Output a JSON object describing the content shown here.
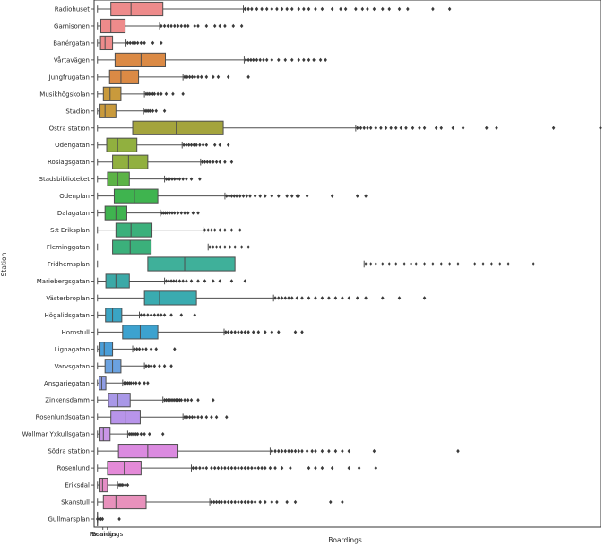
{
  "chart_data": {
    "type": "boxplot",
    "orientation": "horizontal",
    "xlabel": "Boardings",
    "ylabel": "Station",
    "xlim": [
      -20,
      3000
    ],
    "x_tick_labels": [
      "Passings",
      "Boardings"
    ],
    "grid": false,
    "stations": [
      {
        "name": "Radiohuset",
        "color": "#ee8b8b",
        "whisker_low": 0,
        "q1": 80,
        "median": 200,
        "q3": 390,
        "whisker_high": 870,
        "outliers": [
          880,
          900,
          920,
          950,
          980,
          1010,
          1040,
          1070,
          1100,
          1130,
          1160,
          1200,
          1230,
          1260,
          1300,
          1340,
          1400,
          1450,
          1480,
          1540,
          1580,
          1610,
          1650,
          1700,
          1740,
          1800,
          1850,
          2000,
          2100
        ]
      },
      {
        "name": "Garnisonen",
        "color": "#ee8b8b",
        "whisker_low": 0,
        "q1": 20,
        "median": 80,
        "q3": 165,
        "whisker_high": 370,
        "outliers": [
          380,
          400,
          420,
          440,
          460,
          480,
          500,
          520,
          540,
          580,
          600,
          650,
          700,
          730,
          760,
          810,
          860
        ]
      },
      {
        "name": "Banérgatan",
        "color": "#ee8b8b",
        "whisker_low": 0,
        "q1": 18,
        "median": 45,
        "q3": 90,
        "whisker_high": 170,
        "outliers": [
          180,
          195,
          210,
          225,
          240,
          260,
          280,
          330,
          380
        ]
      },
      {
        "name": "Vårtavägen",
        "color": "#db8a45",
        "whisker_low": 0,
        "q1": 105,
        "median": 260,
        "q3": 405,
        "whisker_high": 875,
        "outliers": [
          885,
          900,
          915,
          930,
          950,
          970,
          990,
          1010,
          1040,
          1080,
          1120,
          1160,
          1200,
          1230,
          1260,
          1290,
          1330,
          1360
        ]
      },
      {
        "name": "Jungfrugatan",
        "color": "#db8a45",
        "whisker_low": 0,
        "q1": 72,
        "median": 140,
        "q3": 245,
        "whisker_high": 510,
        "outliers": [
          520,
          535,
          550,
          565,
          580,
          600,
          620,
          650,
          690,
          720,
          780,
          900
        ]
      },
      {
        "name": "Musikhögskolan",
        "color": "#c99a3c",
        "whisker_low": 0,
        "q1": 35,
        "median": 75,
        "q3": 140,
        "whisker_high": 280,
        "outliers": [
          290,
          300,
          310,
          320,
          330,
          340,
          360,
          380,
          410,
          450,
          510
        ]
      },
      {
        "name": "Stadion",
        "color": "#c99a3c",
        "whisker_low": 0,
        "q1": 15,
        "median": 45,
        "q3": 110,
        "whisker_high": 275,
        "outliers": [
          285,
          295,
          305,
          315,
          330,
          350,
          400
        ]
      },
      {
        "name": "Östra station",
        "color": "#a4a43d",
        "whisker_low": 0,
        "q1": 210,
        "median": 470,
        "q3": 750,
        "whisker_high": 1540,
        "outliers": [
          1550,
          1570,
          1590,
          1610,
          1630,
          1660,
          1690,
          1720,
          1750,
          1780,
          1810,
          1840,
          1880,
          1920,
          1950,
          2020,
          2050,
          2120,
          2180,
          2320,
          2380,
          2720,
          3000
        ]
      },
      {
        "name": "Odengatan",
        "color": "#91b03f",
        "whisker_low": 0,
        "q1": 55,
        "median": 120,
        "q3": 235,
        "whisker_high": 505,
        "outliers": [
          515,
          530,
          545,
          560,
          575,
          590,
          610,
          630,
          650,
          700,
          730,
          780
        ]
      },
      {
        "name": "Roslagsgatan",
        "color": "#91b03f",
        "whisker_low": 0,
        "q1": 90,
        "median": 185,
        "q3": 300,
        "whisker_high": 615,
        "outliers": [
          625,
          640,
          655,
          670,
          690,
          710,
          730,
          760,
          800
        ]
      },
      {
        "name": "Stadsbiblioteket",
        "color": "#5cb346",
        "whisker_low": 0,
        "q1": 60,
        "median": 120,
        "q3": 190,
        "whisker_high": 400,
        "outliers": [
          410,
          420,
          430,
          445,
          460,
          475,
          490,
          510,
          530,
          560,
          610
        ]
      },
      {
        "name": "Odenplan",
        "color": "#3fb44f",
        "whisker_low": 0,
        "q1": 100,
        "median": 220,
        "q3": 360,
        "whisker_high": 760,
        "outliers": [
          770,
          785,
          800,
          815,
          830,
          850,
          870,
          890,
          910,
          940,
          970,
          1000,
          1040,
          1080,
          1130,
          1160,
          1190,
          1200,
          1250,
          1400,
          1550,
          1600
        ]
      },
      {
        "name": "Dalagatan",
        "color": "#3fb44f",
        "whisker_low": 0,
        "q1": 45,
        "median": 110,
        "q3": 175,
        "whisker_high": 375,
        "outliers": [
          385,
          395,
          405,
          415,
          430,
          445,
          460,
          480,
          500,
          520,
          540,
          570,
          600
        ]
      },
      {
        "name": "S:t Eriksplan",
        "color": "#3bb07b",
        "whisker_low": 0,
        "q1": 110,
        "median": 200,
        "q3": 325,
        "whisker_high": 630,
        "outliers": [
          640,
          660,
          680,
          700,
          730,
          760,
          800,
          850
        ]
      },
      {
        "name": "Fleminggatan",
        "color": "#3bb07b",
        "whisker_low": 0,
        "q1": 90,
        "median": 195,
        "q3": 320,
        "whisker_high": 660,
        "outliers": [
          670,
          690,
          710,
          730,
          760,
          790,
          820,
          860,
          900
        ]
      },
      {
        "name": "Fridhemsplan",
        "color": "#3fb09a",
        "whisker_low": 0,
        "q1": 300,
        "median": 520,
        "q3": 820,
        "whisker_high": 1590,
        "outliers": [
          1600,
          1630,
          1660,
          1700,
          1740,
          1780,
          1830,
          1870,
          1900,
          1950,
          2000,
          2050,
          2100,
          2150,
          2250,
          2300,
          2350,
          2400,
          2450,
          2600
        ]
      },
      {
        "name": "Mariebergsgatan",
        "color": "#3ba9a7",
        "whisker_low": 0,
        "q1": 50,
        "median": 110,
        "q3": 190,
        "whisker_high": 400,
        "outliers": [
          410,
          425,
          440,
          455,
          470,
          490,
          510,
          530,
          560,
          600,
          640,
          690,
          730,
          800,
          880
        ]
      },
      {
        "name": "Västerbroplan",
        "color": "#3aabb0",
        "whisker_low": 0,
        "q1": 280,
        "median": 370,
        "q3": 590,
        "whisker_high": 1050,
        "outliers": [
          1060,
          1080,
          1100,
          1120,
          1140,
          1160,
          1190,
          1220,
          1260,
          1300,
          1340,
          1380,
          1420,
          1460,
          1500,
          1550,
          1600,
          1700,
          1800,
          1950
        ]
      },
      {
        "name": "Högalidsgatan",
        "color": "#3aa4c4",
        "whisker_low": 0,
        "q1": 48,
        "median": 90,
        "q3": 145,
        "whisker_high": 250,
        "outliers": [
          260,
          280,
          300,
          320,
          340,
          360,
          380,
          400,
          440,
          500,
          580
        ]
      },
      {
        "name": "Hornstull",
        "color": "#3da2cf",
        "whisker_low": 0,
        "q1": 150,
        "median": 255,
        "q3": 360,
        "whisker_high": 755,
        "outliers": [
          765,
          780,
          800,
          820,
          840,
          860,
          880,
          900,
          930,
          960,
          1000,
          1040,
          1080,
          1180,
          1220
        ]
      },
      {
        "name": "Lignagatan",
        "color": "#4a9ed8",
        "whisker_low": 0,
        "q1": 15,
        "median": 40,
        "q3": 90,
        "whisker_high": 210,
        "outliers": [
          220,
          235,
          250,
          270,
          290,
          320,
          350,
          460
        ]
      },
      {
        "name": "Varvsgatan",
        "color": "#6ba2e0",
        "whisker_low": 0,
        "q1": 45,
        "median": 90,
        "q3": 140,
        "whisker_high": 280,
        "outliers": [
          290,
          305,
          320,
          340,
          370,
          400,
          440
        ]
      },
      {
        "name": "Ansgariegatan",
        "color": "#8f9de4",
        "whisker_low": 0,
        "q1": 10,
        "median": 25,
        "q3": 50,
        "whisker_high": 150,
        "outliers": [
          160,
          170,
          180,
          190,
          200,
          215,
          230,
          250,
          280,
          300
        ]
      },
      {
        "name": "Zinkensdamm",
        "color": "#a998e8",
        "whisker_low": 0,
        "q1": 65,
        "median": 120,
        "q3": 195,
        "whisker_high": 390,
        "outliers": [
          400,
          410,
          420,
          430,
          440,
          450,
          460,
          470,
          480,
          490,
          500,
          520,
          540,
          560,
          600,
          690
        ]
      },
      {
        "name": "Rosenlundsgatan",
        "color": "#b894ea",
        "whisker_low": 0,
        "q1": 80,
        "median": 165,
        "q3": 255,
        "whisker_high": 510,
        "outliers": [
          520,
          535,
          550,
          565,
          580,
          600,
          620,
          650,
          680,
          710,
          770
        ]
      },
      {
        "name": "Wollmar Yxkullsgatan",
        "color": "#c996e7",
        "whisker_low": 0,
        "q1": 15,
        "median": 35,
        "q3": 75,
        "whisker_high": 180,
        "outliers": [
          190,
          200,
          210,
          220,
          230,
          240,
          260,
          280,
          310,
          390
        ]
      },
      {
        "name": "Södra station",
        "color": "#db8ae0",
        "whisker_low": 0,
        "q1": 125,
        "median": 300,
        "q3": 480,
        "whisker_high": 1030,
        "outliers": [
          1040,
          1060,
          1080,
          1100,
          1120,
          1140,
          1160,
          1180,
          1200,
          1220,
          1250,
          1280,
          1300,
          1340,
          1380,
          1420,
          1460,
          1500,
          1650,
          2150
        ]
      },
      {
        "name": "Rosenlund",
        "color": "#e48ad8",
        "whisker_low": 0,
        "q1": 60,
        "median": 160,
        "q3": 260,
        "whisker_high": 560,
        "outliers": [
          570,
          590,
          610,
          630,
          650,
          680,
          700,
          720,
          740,
          760,
          780,
          800,
          820,
          840,
          860,
          880,
          900,
          920,
          940,
          960,
          980,
          1000,
          1030,
          1060,
          1100,
          1150,
          1260,
          1300,
          1340,
          1400,
          1500,
          1560,
          1660
        ]
      },
      {
        "name": "Eriksdal",
        "color": "#e58dc6",
        "whisker_low": 0,
        "q1": 15,
        "median": 30,
        "q3": 60,
        "whisker_high": 120,
        "outliers": [
          130,
          140,
          150,
          165,
          180
        ]
      },
      {
        "name": "Skanstull",
        "color": "#e891bc",
        "whisker_low": 0,
        "q1": 35,
        "median": 110,
        "q3": 290,
        "whisker_high": 670,
        "outliers": [
          680,
          695,
          710,
          725,
          740,
          760,
          780,
          800,
          820,
          840,
          860,
          880,
          900,
          920,
          940,
          970,
          1000,
          1040,
          1070,
          1130,
          1180,
          1390,
          1460
        ]
      },
      {
        "name": "Gullmarsplan",
        "color": "#444444",
        "whisker_low": 0,
        "q1": 0,
        "median": 0,
        "q3": 0,
        "whisker_high": 0,
        "outliers": [
          0,
          10,
          20,
          30,
          130
        ]
      }
    ]
  }
}
